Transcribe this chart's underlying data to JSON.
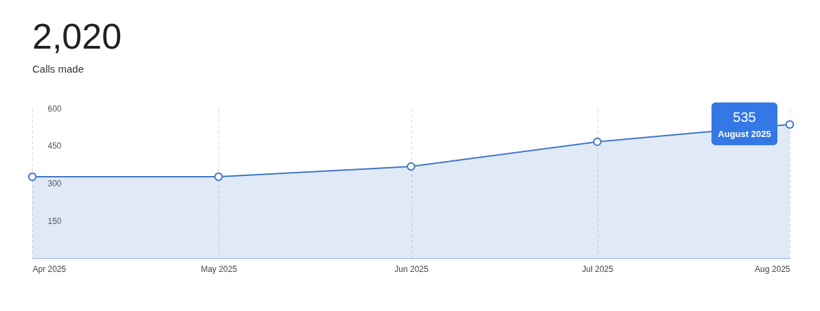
{
  "chart_data": {
    "type": "area",
    "title": "2,020",
    "subtitle": "Calls made",
    "x": [
      "2025-04",
      "2025-05",
      "2025-06",
      "2025-07",
      "2025-08"
    ],
    "series": [
      {
        "color": "#3d76c6",
        "values": [
          326,
          326,
          367,
          466,
          535
        ]
      }
    ],
    "xlim": [
      "2025-04",
      "2025-08"
    ],
    "xticks": [
      {
        "value": "2025-04",
        "label": "Apr 2025"
      },
      {
        "value": "2025-05",
        "label": "May 2025"
      },
      {
        "value": "2025-06",
        "label": "Jun 2025"
      },
      {
        "value": "2025-07",
        "label": "Jul 2025"
      },
      {
        "value": "2025-08",
        "label": "Aug 2025"
      }
    ],
    "ylim": [
      0,
      600
    ],
    "yticks": [
      150,
      300,
      450,
      600
    ],
    "grid": "x",
    "marker": "circle",
    "annotations": [
      {
        "text": "535",
        "x": "2025-08",
        "y": 535
      },
      {
        "text": "August 2025",
        "x": "2025-08",
        "y": 535
      }
    ]
  }
}
